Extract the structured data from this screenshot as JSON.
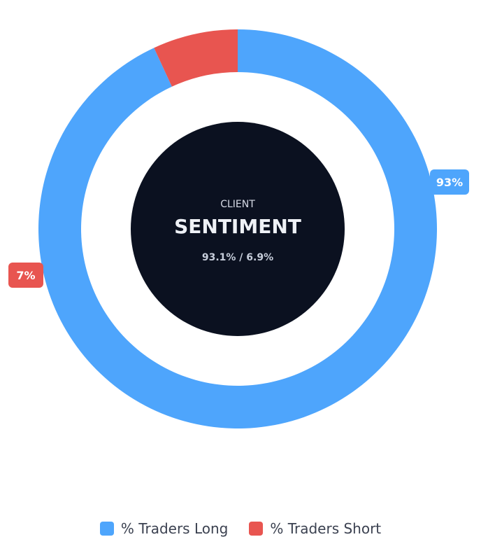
{
  "chart_data": {
    "type": "pie",
    "categories": [
      "% Traders Long",
      "% Traders Short"
    ],
    "values": [
      93.1,
      6.9
    ],
    "colors": [
      "#4ea5fc",
      "#e85550"
    ],
    "data_labels": [
      "93%",
      "7%"
    ],
    "center": {
      "kicker": "CLIENT",
      "title": "SENTIMENT",
      "ratio": "93.1% / 6.9%"
    },
    "legend_position": "bottom"
  }
}
